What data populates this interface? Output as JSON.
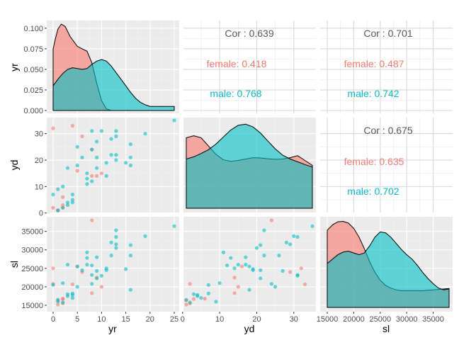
{
  "chart_data": {
    "type": "scatter-matrix",
    "variables": [
      "yr",
      "yd",
      "sl"
    ],
    "axis_labels": {
      "yr": "yr",
      "yd": "yd",
      "sl": "sl"
    },
    "groups": [
      {
        "name": "female",
        "color": "#f8766d"
      },
      {
        "name": "male",
        "color": "#00bfc4"
      }
    ],
    "ranges": {
      "yr": [
        0,
        25
      ],
      "yd": [
        1,
        35
      ],
      "sl": [
        15000,
        38000
      ],
      "density": [
        0,
        0.105
      ]
    },
    "ticks": {
      "yr": {
        "values": [
          0,
          5,
          10,
          15,
          20,
          25
        ],
        "labels": [
          "0",
          "5",
          "10",
          "15",
          "20",
          "25"
        ]
      },
      "yd": {
        "values": [
          0,
          10,
          20,
          30
        ],
        "labels": [
          "0",
          "10",
          "20",
          "30"
        ]
      },
      "sl": {
        "values": [
          15000,
          20000,
          25000,
          30000,
          35000
        ],
        "labels": [
          "15000",
          "20000",
          "25000",
          "30000",
          "35000"
        ]
      },
      "density": {
        "values": [
          0,
          0.025,
          0.05,
          0.075,
          0.1
        ],
        "labels": [
          "0.000",
          "0.025",
          "0.050",
          "0.075",
          "0.100"
        ]
      }
    },
    "correlations": [
      {
        "pair": [
          "yr",
          "yd"
        ],
        "overall": "Cor : 0.639",
        "female": "female: 0.418",
        "male": "male: 0.768"
      },
      {
        "pair": [
          "yr",
          "sl"
        ],
        "overall": "Cor : 0.701",
        "female": "female: 0.487",
        "male": "male: 0.742"
      },
      {
        "pair": [
          "yd",
          "sl"
        ],
        "overall": "Cor : 0.675",
        "female": "female: 0.635",
        "male": "male: 0.702"
      }
    ],
    "points": [
      {
        "g": "female",
        "yr": 0,
        "yd": 32,
        "sl": 25000
      },
      {
        "g": "female",
        "yr": 0,
        "yd": 2,
        "sl": 20800
      },
      {
        "g": "female",
        "yr": 1,
        "yd": 1,
        "sl": 15200
      },
      {
        "g": "female",
        "yr": 2,
        "yd": 2,
        "sl": 15500
      },
      {
        "g": "female",
        "yr": 2,
        "yd": 6,
        "sl": 16800
      },
      {
        "g": "female",
        "yr": 4,
        "yd": 33,
        "sl": 20700
      },
      {
        "g": "female",
        "yr": 5,
        "yd": 16,
        "sl": 25500
      },
      {
        "g": "female",
        "yr": 6,
        "yd": 29,
        "sl": 24000
      },
      {
        "g": "female",
        "yr": 8,
        "yd": 14,
        "sl": 18300
      },
      {
        "g": "female",
        "yr": 8,
        "yd": 24,
        "sl": 38000
      },
      {
        "g": "female",
        "yr": 9,
        "yd": 14,
        "sl": 22500
      },
      {
        "g": "female",
        "yr": 10,
        "yd": 15,
        "sl": 20000
      },
      {
        "g": "female",
        "yr": 2,
        "yd": 3,
        "sl": 16700
      },
      {
        "g": "female",
        "yr": 1,
        "yd": 1,
        "sl": 16300
      },
      {
        "g": "male",
        "yr": 0,
        "yd": 7,
        "sl": 20500
      },
      {
        "g": "male",
        "yr": 1,
        "yd": 9,
        "sl": 16000
      },
      {
        "g": "male",
        "yr": 1,
        "yd": 1,
        "sl": 16500
      },
      {
        "g": "male",
        "yr": 2,
        "yd": 2,
        "sl": 15800
      },
      {
        "g": "male",
        "yr": 2,
        "yd": 10,
        "sl": 21000
      },
      {
        "g": "male",
        "yr": 3,
        "yd": 4,
        "sl": 17500
      },
      {
        "g": "male",
        "yr": 3,
        "yd": 17,
        "sl": 26000
      },
      {
        "g": "male",
        "yr": 3,
        "yd": 3,
        "sl": 18000
      },
      {
        "g": "male",
        "yr": 4,
        "yd": 5,
        "sl": 17000
      },
      {
        "g": "male",
        "yr": 4,
        "yd": 4,
        "sl": 17800
      },
      {
        "g": "male",
        "yr": 4,
        "yd": 7,
        "sl": 18200
      },
      {
        "g": "male",
        "yr": 5,
        "yd": 18,
        "sl": 25500
      },
      {
        "g": "male",
        "yr": 5,
        "yd": 25,
        "sl": 20000
      },
      {
        "g": "male",
        "yr": 6,
        "yd": 21,
        "sl": 24500
      },
      {
        "g": "male",
        "yr": 7,
        "yd": 13,
        "sl": 27800
      },
      {
        "g": "male",
        "yr": 7,
        "yd": 11,
        "sl": 29300
      },
      {
        "g": "male",
        "yr": 7,
        "yd": 15,
        "sl": 26000
      },
      {
        "g": "male",
        "yr": 8,
        "yd": 31,
        "sl": 23200
      },
      {
        "g": "male",
        "yr": 8,
        "yd": 24,
        "sl": 20800
      },
      {
        "g": "male",
        "yr": 8,
        "yd": 12,
        "sl": 25800
      },
      {
        "g": "male",
        "yr": 9,
        "yd": 17,
        "sl": 28000
      },
      {
        "g": "male",
        "yr": 9,
        "yd": 27,
        "sl": 24300
      },
      {
        "g": "male",
        "yr": 9,
        "yd": 21,
        "sl": 22300
      },
      {
        "g": "male",
        "yr": 10,
        "yd": 31,
        "sl": 23000
      },
      {
        "g": "male",
        "yr": 11,
        "yd": 14,
        "sl": 25000
      },
      {
        "g": "male",
        "yr": 11,
        "yd": 19,
        "sl": 24500
      },
      {
        "g": "male",
        "yr": 12,
        "yd": 22,
        "sl": 28500
      },
      {
        "g": "male",
        "yr": 13,
        "yd": 31,
        "sl": 33500
      },
      {
        "g": "male",
        "yr": 13,
        "yd": 29,
        "sl": 31500
      },
      {
        "g": "male",
        "yr": 13,
        "yd": 22,
        "sl": 35300
      },
      {
        "g": "male",
        "yr": 13,
        "yd": 20,
        "sl": 30500
      },
      {
        "g": "male",
        "yr": 15,
        "yd": 19,
        "sl": 24800
      },
      {
        "g": "male",
        "yr": 16,
        "yd": 26,
        "sl": 28500
      },
      {
        "g": "male",
        "yr": 16,
        "yd": 18,
        "sl": 19200
      },
      {
        "g": "male",
        "yr": 16,
        "yd": 21,
        "sl": 31300
      },
      {
        "g": "male",
        "yr": 19,
        "yd": 30,
        "sl": 33700
      },
      {
        "g": "male",
        "yr": 25,
        "yd": 35,
        "sl": 36400
      },
      {
        "g": "male",
        "yr": 12,
        "yd": 28,
        "sl": 32000
      }
    ],
    "density_curves": {
      "yr": {
        "female": [
          [
            0,
            0.075
          ],
          [
            0.5,
            0.088
          ],
          [
            1,
            0.099
          ],
          [
            1.7,
            0.105
          ],
          [
            2.5,
            0.102
          ],
          [
            3.5,
            0.09
          ],
          [
            5,
            0.078
          ],
          [
            6,
            0.075
          ],
          [
            7,
            0.072
          ],
          [
            8,
            0.058
          ],
          [
            9,
            0.033
          ],
          [
            10,
            0.012
          ],
          [
            11,
            0.002
          ],
          [
            12,
            0
          ]
        ],
        "male": [
          [
            0,
            0.03
          ],
          [
            1,
            0.038
          ],
          [
            2,
            0.045
          ],
          [
            3,
            0.05
          ],
          [
            4,
            0.052
          ],
          [
            5,
            0.051
          ],
          [
            6,
            0.05
          ],
          [
            7,
            0.051
          ],
          [
            8,
            0.056
          ],
          [
            9,
            0.06
          ],
          [
            10,
            0.062
          ],
          [
            11,
            0.06
          ],
          [
            12,
            0.054
          ],
          [
            13,
            0.046
          ],
          [
            14,
            0.038
          ],
          [
            15,
            0.03
          ],
          [
            16,
            0.022
          ],
          [
            17,
            0.015
          ],
          [
            18,
            0.01
          ],
          [
            19,
            0.007
          ],
          [
            20,
            0.005
          ],
          [
            21,
            0.005
          ],
          [
            22,
            0.005
          ],
          [
            23,
            0.005
          ],
          [
            24,
            0.005
          ],
          [
            25,
            0.005
          ]
        ]
      },
      "yd": {
        "female": [
          [
            1,
            0.0255
          ],
          [
            3,
            0.0262
          ],
          [
            5,
            0.0255
          ],
          [
            7,
            0.0225
          ],
          [
            9,
            0.0195
          ],
          [
            11,
            0.0175
          ],
          [
            13,
            0.017
          ],
          [
            15,
            0.0173
          ],
          [
            17,
            0.0178
          ],
          [
            19,
            0.0183
          ],
          [
            21,
            0.0182
          ],
          [
            23,
            0.0179
          ],
          [
            25,
            0.0177
          ],
          [
            27,
            0.0178
          ],
          [
            29,
            0.0183
          ],
          [
            31,
            0.019
          ],
          [
            33,
            0.0173
          ],
          [
            35,
            0.0155
          ]
        ],
        "male": [
          [
            1,
            0.0178
          ],
          [
            3,
            0.0186
          ],
          [
            5,
            0.0198
          ],
          [
            7,
            0.0212
          ],
          [
            9,
            0.0232
          ],
          [
            11,
            0.0258
          ],
          [
            13,
            0.0283
          ],
          [
            15,
            0.03
          ],
          [
            17,
            0.0304
          ],
          [
            19,
            0.0294
          ],
          [
            21,
            0.0272
          ],
          [
            23,
            0.0243
          ],
          [
            25,
            0.0215
          ],
          [
            27,
            0.0192
          ],
          [
            29,
            0.0178
          ],
          [
            31,
            0.0168
          ],
          [
            33,
            0.0158
          ],
          [
            35,
            0.0149
          ]
        ]
      },
      "sl": {
        "female": [
          [
            15000,
            0.88
          ],
          [
            16000,
            0.94
          ],
          [
            17000,
            0.975
          ],
          [
            18000,
            0.98
          ],
          [
            19000,
            0.96
          ],
          [
            20000,
            0.9
          ],
          [
            21000,
            0.8
          ],
          [
            22000,
            0.67
          ],
          [
            23000,
            0.52
          ],
          [
            24000,
            0.4
          ],
          [
            25000,
            0.31
          ],
          [
            26000,
            0.25
          ],
          [
            27000,
            0.22
          ],
          [
            28000,
            0.2
          ],
          [
            29000,
            0.19
          ],
          [
            30000,
            0.19
          ],
          [
            31000,
            0.19
          ],
          [
            32000,
            0.19
          ],
          [
            33000,
            0.19
          ],
          [
            34000,
            0.195
          ],
          [
            35000,
            0.2
          ],
          [
            36000,
            0.205
          ],
          [
            37000,
            0.21
          ],
          [
            38000,
            0.215
          ]
        ],
        "male": [
          [
            15000,
            0.5
          ],
          [
            16000,
            0.55
          ],
          [
            17000,
            0.6
          ],
          [
            18000,
            0.63
          ],
          [
            19000,
            0.64
          ],
          [
            20000,
            0.62
          ],
          [
            21000,
            0.6
          ],
          [
            22000,
            0.62
          ],
          [
            23000,
            0.7
          ],
          [
            24000,
            0.8
          ],
          [
            25000,
            0.86
          ],
          [
            26000,
            0.85
          ],
          [
            27000,
            0.8
          ],
          [
            28000,
            0.73
          ],
          [
            29000,
            0.66
          ],
          [
            30000,
            0.6
          ],
          [
            31000,
            0.55
          ],
          [
            32000,
            0.48
          ],
          [
            33000,
            0.4
          ],
          [
            34000,
            0.33
          ],
          [
            35000,
            0.27
          ],
          [
            36000,
            0.22
          ],
          [
            37000,
            0.2
          ],
          [
            38000,
            0.21
          ]
        ]
      }
    }
  }
}
